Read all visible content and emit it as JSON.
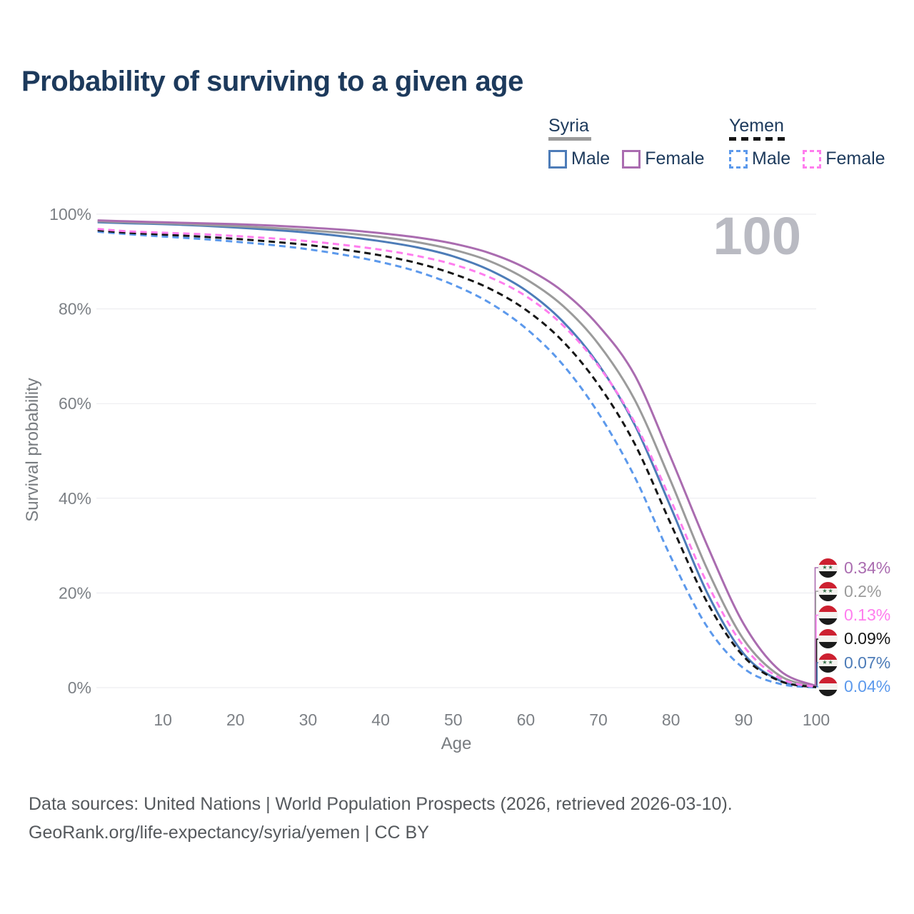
{
  "title": "Probability of surviving to a given age",
  "watermark_age": "100",
  "legend": {
    "syria": {
      "label": "Syria",
      "male": "Male",
      "female": "Female"
    },
    "yemen": {
      "label": "Yemen",
      "male": "Male",
      "female": "Female"
    }
  },
  "axes": {
    "y_label": "Survival probability",
    "x_label": "Age",
    "y_ticks": [
      "0%",
      "20%",
      "40%",
      "60%",
      "80%",
      "100%"
    ],
    "x_ticks": [
      "10",
      "20",
      "30",
      "40",
      "50",
      "60",
      "70",
      "80",
      "90",
      "100"
    ]
  },
  "footer": {
    "line1": "Data sources: United Nations | World Population Prospects (2026, retrieved 2026-03-10).",
    "line2": "GeoRank.org/life-expectancy/syria/yemen | CC BY"
  },
  "chart_data": {
    "type": "line",
    "title": "Probability of surviving to a given age",
    "xlabel": "Age",
    "ylabel": "Survival probability",
    "xlim": [
      0,
      100
    ],
    "ylim": [
      0,
      100
    ],
    "grid": "horizontal",
    "legend_position": "top-right",
    "x": [
      1,
      5,
      10,
      15,
      20,
      25,
      30,
      35,
      40,
      45,
      50,
      55,
      60,
      65,
      70,
      75,
      80,
      85,
      90,
      95,
      100
    ],
    "series": [
      {
        "id": "syria-female",
        "country": "Syria",
        "sex": "Female",
        "color": "#aa6cb0",
        "dashed": false,
        "flag": "syria",
        "end_label": "0.34%",
        "values": [
          98.7,
          98.5,
          98.3,
          98.1,
          97.9,
          97.6,
          97.2,
          96.7,
          96.0,
          95.1,
          93.8,
          91.8,
          88.6,
          83.8,
          76.5,
          66.0,
          48.5,
          30.0,
          13.5,
          3.6,
          0.34
        ]
      },
      {
        "id": "syria-all",
        "country": "Syria",
        "sex": "Both sexes",
        "color": "#9b9b9b",
        "dashed": false,
        "flag": "syria",
        "end_label": "0.2%",
        "values": [
          98.5,
          98.3,
          98.1,
          97.8,
          97.5,
          97.1,
          96.6,
          96.0,
          95.2,
          94.1,
          92.5,
          90.1,
          86.3,
          80.8,
          72.6,
          60.8,
          43.5,
          25.0,
          10.2,
          2.5,
          0.2
        ]
      },
      {
        "id": "yemen-female",
        "country": "Yemen",
        "sex": "Female",
        "color": "#ff7dee",
        "dashed": true,
        "flag": "yemen",
        "end_label": "0.13%",
        "values": [
          96.9,
          96.4,
          96.1,
          95.8,
          95.4,
          94.9,
          94.3,
          93.5,
          92.5,
          91.2,
          89.4,
          86.7,
          82.7,
          76.7,
          68.0,
          56.0,
          39.5,
          22.0,
          8.8,
          2.0,
          0.13
        ]
      },
      {
        "id": "yemen-all",
        "country": "Yemen",
        "sex": "Both sexes",
        "color": "#161616",
        "dashed": true,
        "flag": "yemen",
        "end_label": "0.09%",
        "values": [
          96.6,
          96.1,
          95.7,
          95.3,
          94.8,
          94.2,
          93.5,
          92.5,
          91.3,
          89.7,
          87.4,
          84.3,
          79.8,
          73.3,
          64.0,
          51.5,
          34.5,
          18.0,
          6.6,
          1.4,
          0.09
        ]
      },
      {
        "id": "syria-male",
        "country": "Syria",
        "sex": "Male",
        "color": "#4d7cb8",
        "dashed": false,
        "flag": "syria",
        "end_label": "0.07%",
        "values": [
          98.3,
          98.1,
          97.9,
          97.6,
          97.2,
          96.7,
          96.1,
          95.3,
          94.3,
          93.0,
          91.1,
          88.2,
          83.9,
          77.5,
          68.3,
          55.5,
          38.0,
          20.0,
          7.2,
          1.5,
          0.07
        ]
      },
      {
        "id": "yemen-male",
        "country": "Yemen",
        "sex": "Male",
        "color": "#5c99ec",
        "dashed": true,
        "flag": "yemen",
        "end_label": "0.04%",
        "values": [
          96.3,
          95.8,
          95.3,
          94.8,
          94.2,
          93.5,
          92.6,
          91.4,
          89.9,
          87.9,
          85.1,
          81.3,
          75.9,
          68.4,
          58.0,
          44.5,
          27.5,
          12.8,
          4.1,
          0.8,
          0.04
        ]
      }
    ]
  }
}
